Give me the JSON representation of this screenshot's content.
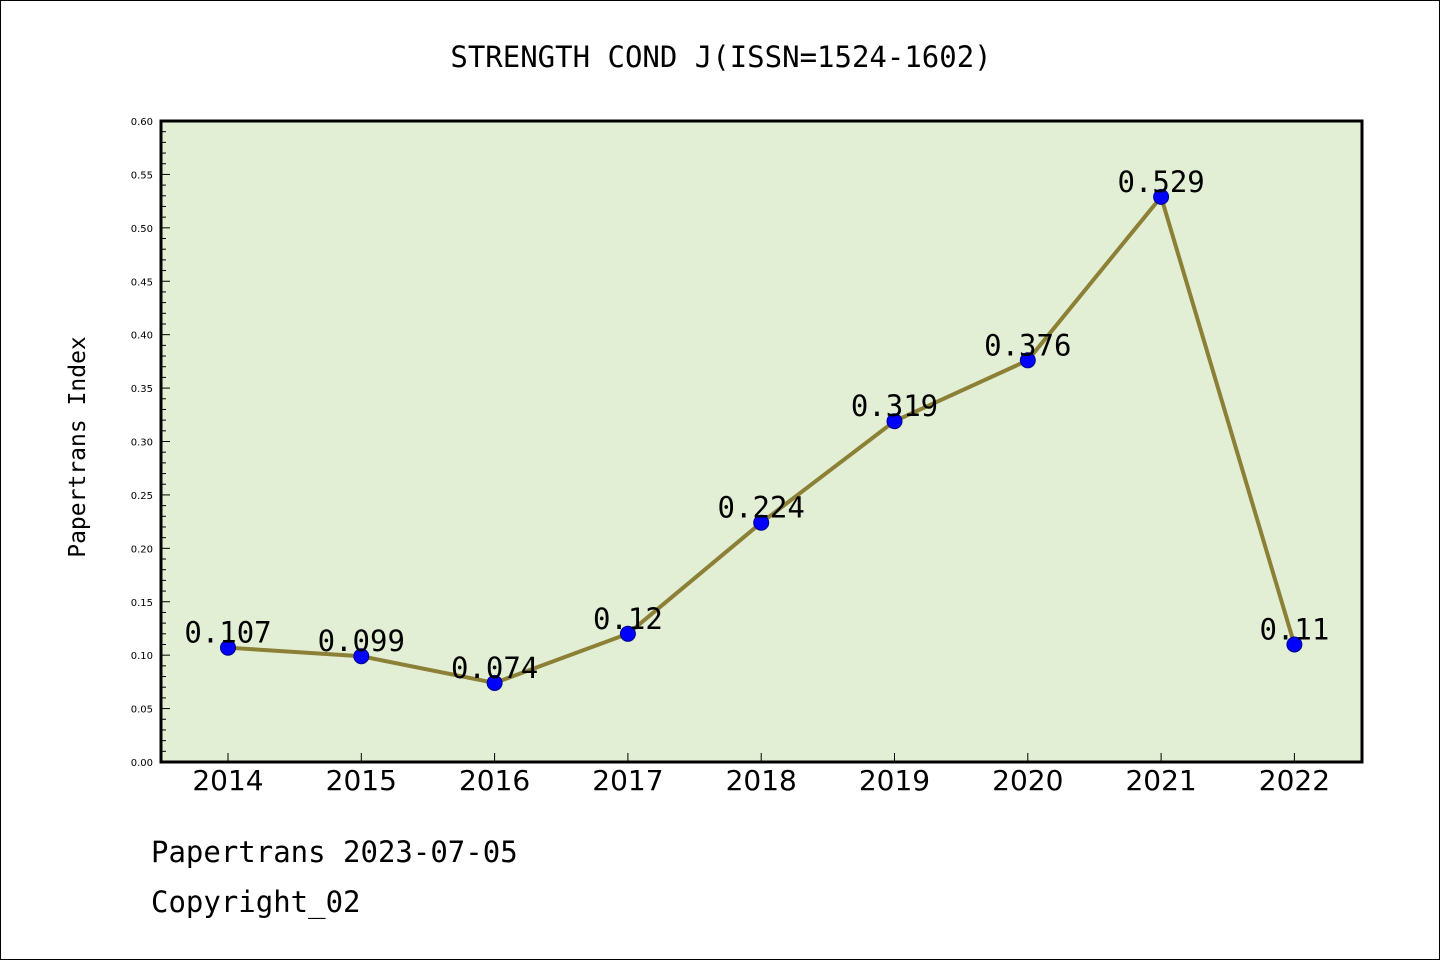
{
  "chart_data": {
    "type": "line",
    "title": "STRENGTH COND J(ISSN=1524-1602)",
    "xlabel": "",
    "ylabel": "Papertrans Index",
    "categories": [
      "2014",
      "2015",
      "2016",
      "2017",
      "2018",
      "2019",
      "2020",
      "2021",
      "2022"
    ],
    "series": [
      {
        "values": [
          0.107,
          0.099,
          0.074,
          0.12,
          0.224,
          0.319,
          0.376,
          0.529,
          0.11
        ],
        "data_labels": [
          "0.107",
          "0.099",
          "0.074",
          "0.12",
          "0.224",
          "0.319",
          "0.376",
          "0.529",
          "0.11"
        ]
      }
    ],
    "ylim": [
      0,
      0.6
    ],
    "yticks": [
      "0.00",
      "0.05",
      "0.10",
      "0.15",
      "0.20",
      "0.25",
      "0.30",
      "0.35",
      "0.40",
      "0.45",
      "0.50",
      "0.55",
      "0.60"
    ],
    "grid": false,
    "legend": "none",
    "colors": {
      "plot_background": "#e2efd5",
      "line": "#8b8035",
      "marker": "#0000ff",
      "marker_edge": "#00008b"
    }
  },
  "footer": {
    "line1": "Papertrans 2023-07-05",
    "line2": "Copyright_02"
  }
}
